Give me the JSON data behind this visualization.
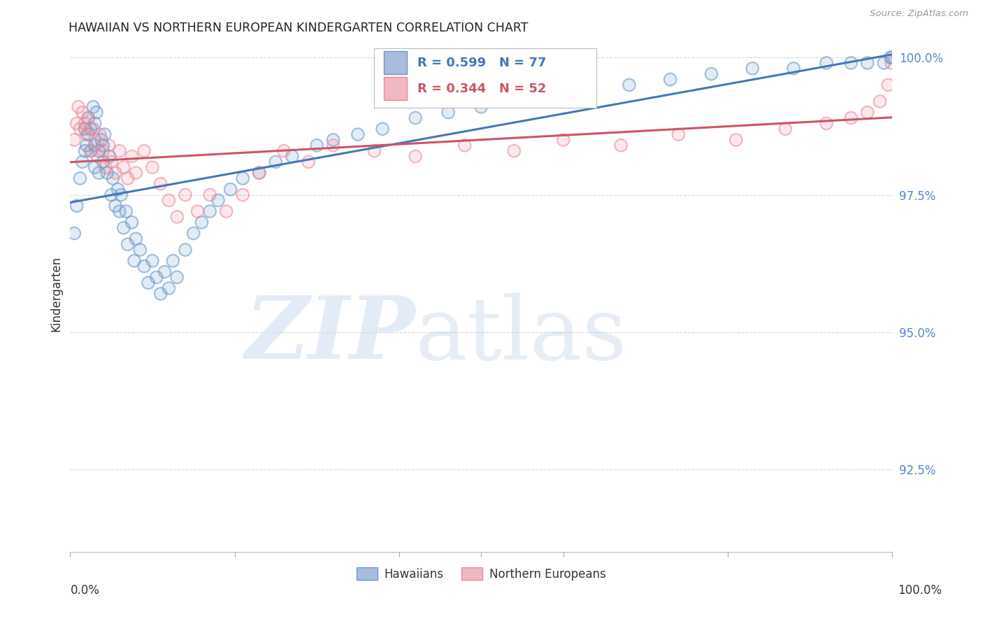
{
  "title": "HAWAIIAN VS NORTHERN EUROPEAN KINDERGARTEN CORRELATION CHART",
  "source": "Source: ZipAtlas.com",
  "ylabel": "Kindergarten",
  "xlim": [
    0.0,
    1.0
  ],
  "ylim": [
    0.91,
    1.004
  ],
  "yticks": [
    0.925,
    0.95,
    0.975,
    1.0
  ],
  "ytick_labels": [
    "92.5%",
    "95.0%",
    "97.5%",
    "100.0%"
  ],
  "hawaiian_color": "#6699cc",
  "northern_color": "#ee8899",
  "hawaiian_line_color": "#4477bb",
  "northern_line_color": "#cc5566",
  "hawaiian_R": 0.599,
  "hawaiian_N": 77,
  "northern_R": 0.344,
  "northern_N": 52,
  "legend_label_1": "Hawaiians",
  "legend_label_2": "Northern Europeans",
  "hawaiian_x": [
    0.005,
    0.008,
    0.012,
    0.015,
    0.018,
    0.018,
    0.02,
    0.022,
    0.022,
    0.025,
    0.025,
    0.028,
    0.03,
    0.03,
    0.03,
    0.032,
    0.035,
    0.035,
    0.038,
    0.04,
    0.04,
    0.042,
    0.045,
    0.048,
    0.05,
    0.052,
    0.055,
    0.058,
    0.06,
    0.062,
    0.065,
    0.068,
    0.07,
    0.075,
    0.078,
    0.08,
    0.085,
    0.09,
    0.095,
    0.1,
    0.105,
    0.11,
    0.115,
    0.12,
    0.125,
    0.13,
    0.14,
    0.15,
    0.16,
    0.17,
    0.18,
    0.195,
    0.21,
    0.23,
    0.25,
    0.27,
    0.3,
    0.32,
    0.35,
    0.38,
    0.42,
    0.46,
    0.5,
    0.54,
    0.58,
    0.63,
    0.68,
    0.73,
    0.78,
    0.83,
    0.88,
    0.92,
    0.95,
    0.97,
    0.99,
    0.998,
    1.0
  ],
  "hawaiian_y": [
    0.968,
    0.973,
    0.978,
    0.981,
    0.983,
    0.987,
    0.984,
    0.986,
    0.989,
    0.983,
    0.987,
    0.991,
    0.98,
    0.984,
    0.988,
    0.99,
    0.979,
    0.983,
    0.985,
    0.981,
    0.984,
    0.986,
    0.979,
    0.982,
    0.975,
    0.978,
    0.973,
    0.976,
    0.972,
    0.975,
    0.969,
    0.972,
    0.966,
    0.97,
    0.963,
    0.967,
    0.965,
    0.962,
    0.959,
    0.963,
    0.96,
    0.957,
    0.961,
    0.958,
    0.963,
    0.96,
    0.965,
    0.968,
    0.97,
    0.972,
    0.974,
    0.976,
    0.978,
    0.979,
    0.981,
    0.982,
    0.984,
    0.985,
    0.986,
    0.987,
    0.989,
    0.99,
    0.991,
    0.992,
    0.993,
    0.994,
    0.995,
    0.996,
    0.997,
    0.998,
    0.998,
    0.999,
    0.999,
    0.999,
    0.999,
    1.0,
    1.0
  ],
  "northern_x": [
    0.005,
    0.008,
    0.01,
    0.012,
    0.015,
    0.018,
    0.02,
    0.022,
    0.025,
    0.028,
    0.03,
    0.033,
    0.036,
    0.04,
    0.043,
    0.047,
    0.05,
    0.055,
    0.06,
    0.065,
    0.07,
    0.075,
    0.08,
    0.09,
    0.1,
    0.11,
    0.12,
    0.13,
    0.14,
    0.155,
    0.17,
    0.19,
    0.21,
    0.23,
    0.26,
    0.29,
    0.32,
    0.37,
    0.42,
    0.48,
    0.54,
    0.6,
    0.67,
    0.74,
    0.81,
    0.87,
    0.92,
    0.95,
    0.97,
    0.985,
    0.995,
    0.999
  ],
  "northern_y": [
    0.985,
    0.988,
    0.991,
    0.987,
    0.99,
    0.988,
    0.986,
    0.989,
    0.983,
    0.987,
    0.985,
    0.982,
    0.986,
    0.983,
    0.98,
    0.984,
    0.981,
    0.979,
    0.983,
    0.98,
    0.978,
    0.982,
    0.979,
    0.983,
    0.98,
    0.977,
    0.974,
    0.971,
    0.975,
    0.972,
    0.975,
    0.972,
    0.975,
    0.979,
    0.983,
    0.981,
    0.984,
    0.983,
    0.982,
    0.984,
    0.983,
    0.985,
    0.984,
    0.986,
    0.985,
    0.987,
    0.988,
    0.989,
    0.99,
    0.992,
    0.995,
    0.999
  ]
}
